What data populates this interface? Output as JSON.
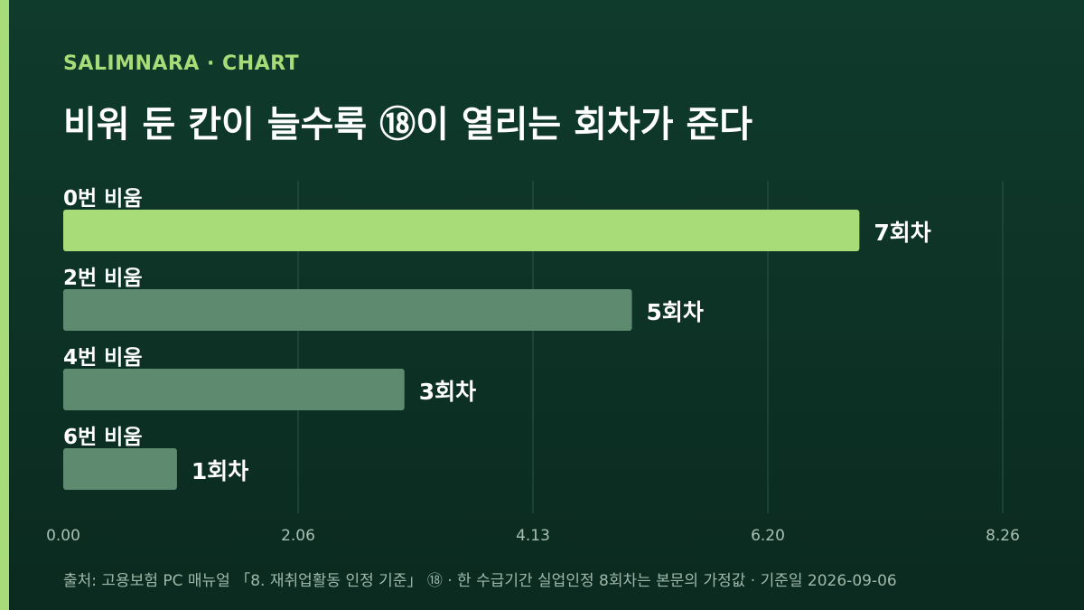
{
  "header": {
    "brand": "SALIMNARA · CHART",
    "title": "비워 둔 칸이 늘수록 ⑱이 열리는 회차가 준다"
  },
  "source_note": "출처: 고용보험 PC 매뉴얼 「8. 재취업활동 인정 기준」 ⑱ · 한 수급기간 실업인정 8회차는 본문의 가정값 · 기준일 2026-09-06",
  "colors": {
    "highlight_bar": "#a8dc78",
    "default_bar": "#5e8a70",
    "grid": "#2d5646",
    "tick_text": "#a9c0b3",
    "accent": "#a8dc78"
  },
  "chart_data": {
    "type": "bar",
    "orientation": "horizontal",
    "categories": [
      "0번 비움",
      "2번 비움",
      "4번 비움",
      "6번 비움"
    ],
    "values": [
      7,
      5,
      3,
      1
    ],
    "value_labels": [
      "7회차",
      "5회차",
      "3회차",
      "1회차"
    ],
    "highlight_index": 0,
    "xlim": [
      0,
      8.26
    ],
    "x_ticks": [
      "0.00",
      "2.06",
      "4.13",
      "6.20",
      "8.26"
    ],
    "x_tick_values": [
      0,
      2.065,
      4.13,
      6.195,
      8.26
    ],
    "grid": true,
    "legend": "none"
  }
}
